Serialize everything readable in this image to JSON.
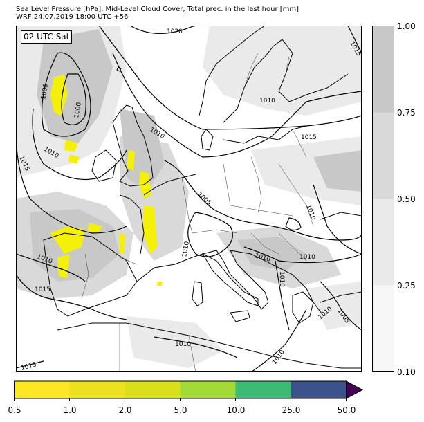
{
  "title_line1": "Sea Level Pressure [hPa], Mid-Level Cloud Cover, Total prec. in the last hour [mm]",
  "title_line2": "WRF 24.07.2019 18:00 UTC +56",
  "time_label": "02 UTC Sat",
  "isobar_labels": [
    "1020",
    "1015",
    "1010",
    "1010",
    "1015",
    "1005",
    "1000",
    "1010",
    "1015",
    "1010",
    "1005",
    "1010",
    "1010",
    "1010",
    "1010",
    "1010",
    "1015",
    "1010",
    "1010",
    "1005",
    "1015",
    "1010"
  ],
  "cloud_colorbar": {
    "ticks": [
      "1.00",
      "0.75",
      "0.50",
      "0.25",
      "0.10"
    ],
    "levels": [
      0.1,
      0.25,
      0.5,
      0.75,
      1.0
    ],
    "colors": [
      "#f7f7f7",
      "#eaeaea",
      "#d9d9d9",
      "#c8c8c8"
    ]
  },
  "precip_colorbar": {
    "ticks": [
      "0.5",
      "1.0",
      "2.0",
      "5.0",
      "10.0",
      "25.0",
      "50.0"
    ],
    "colors": [
      "#fde725",
      "#ece11f",
      "#d9df1b",
      "#a2da37",
      "#3cbb75",
      "#2a9d8f",
      "#3b528b",
      "#440154"
    ]
  },
  "colors": {
    "land_cloud": "#c8c8c8",
    "precip": "#f5f00a",
    "isobar": "#000000",
    "coast": "#000000"
  }
}
